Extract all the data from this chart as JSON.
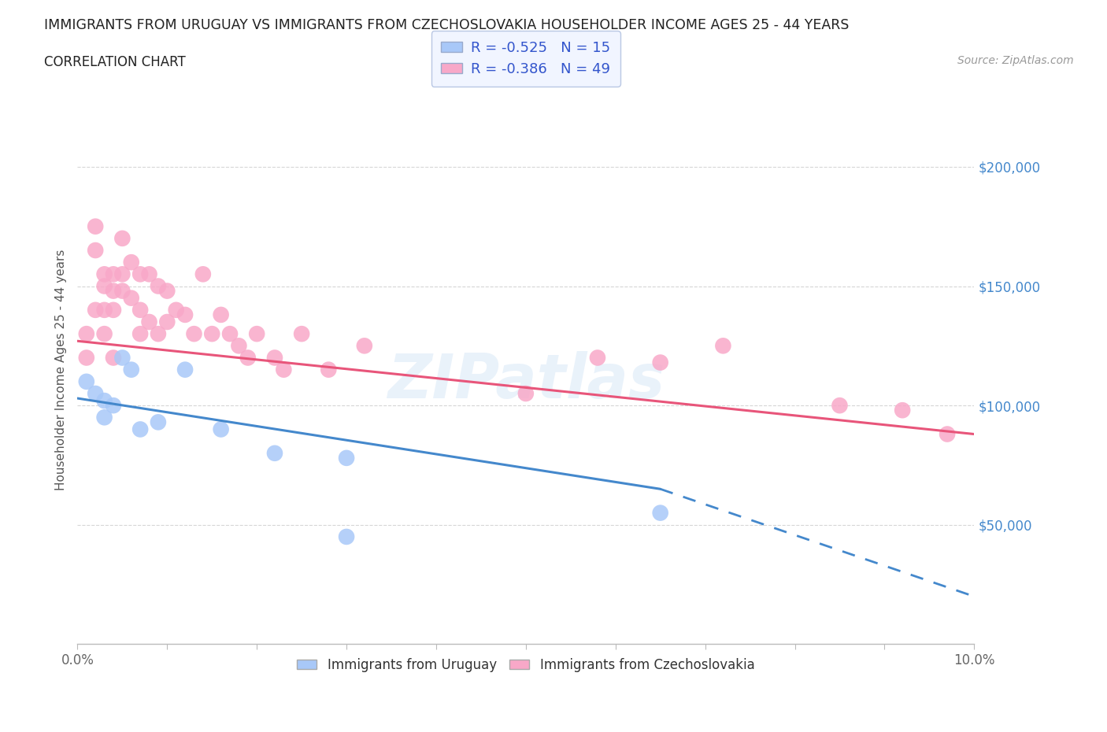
{
  "title": "IMMIGRANTS FROM URUGUAY VS IMMIGRANTS FROM CZECHOSLOVAKIA HOUSEHOLDER INCOME AGES 25 - 44 YEARS",
  "subtitle": "CORRELATION CHART",
  "source": "Source: ZipAtlas.com",
  "ylabel": "Householder Income Ages 25 - 44 years",
  "watermark": "ZIPatlas",
  "xlim": [
    0.0,
    0.1
  ],
  "ylim": [
    0,
    230000
  ],
  "xticks": [
    0.0,
    0.01,
    0.02,
    0.03,
    0.04,
    0.05,
    0.06,
    0.07,
    0.08,
    0.09,
    0.1
  ],
  "ytick_positions": [
    50000,
    100000,
    150000,
    200000
  ],
  "ytick_labels": [
    "$50,000",
    "$100,000",
    "$150,000",
    "$200,000"
  ],
  "uruguay_R": -0.525,
  "uruguay_N": 15,
  "czechoslovakia_R": -0.386,
  "czechoslovakia_N": 49,
  "uruguay_color": "#a8c8f8",
  "czechoslovakia_color": "#f8a8c8",
  "uruguay_line_color": "#4488cc",
  "czechoslovakia_line_color": "#e8557a",
  "uruguay_scatter_x": [
    0.001,
    0.002,
    0.003,
    0.003,
    0.004,
    0.005,
    0.006,
    0.007,
    0.009,
    0.012,
    0.016,
    0.022,
    0.03,
    0.065,
    0.03
  ],
  "uruguay_scatter_y": [
    110000,
    105000,
    102000,
    95000,
    100000,
    120000,
    115000,
    90000,
    93000,
    115000,
    90000,
    80000,
    78000,
    55000,
    45000
  ],
  "czechoslovakia_scatter_x": [
    0.001,
    0.001,
    0.002,
    0.002,
    0.002,
    0.003,
    0.003,
    0.003,
    0.003,
    0.004,
    0.004,
    0.004,
    0.004,
    0.005,
    0.005,
    0.005,
    0.006,
    0.006,
    0.007,
    0.007,
    0.007,
    0.008,
    0.008,
    0.009,
    0.009,
    0.01,
    0.01,
    0.011,
    0.012,
    0.013,
    0.014,
    0.015,
    0.016,
    0.017,
    0.018,
    0.019,
    0.02,
    0.022,
    0.023,
    0.025,
    0.028,
    0.032,
    0.05,
    0.058,
    0.065,
    0.072,
    0.085,
    0.092,
    0.097
  ],
  "czechoslovakia_scatter_y": [
    130000,
    120000,
    165000,
    175000,
    140000,
    155000,
    150000,
    140000,
    130000,
    155000,
    148000,
    140000,
    120000,
    170000,
    155000,
    148000,
    160000,
    145000,
    155000,
    140000,
    130000,
    155000,
    135000,
    150000,
    130000,
    148000,
    135000,
    140000,
    138000,
    130000,
    155000,
    130000,
    138000,
    130000,
    125000,
    120000,
    130000,
    120000,
    115000,
    130000,
    115000,
    125000,
    105000,
    120000,
    118000,
    125000,
    100000,
    98000,
    88000
  ],
  "grid_color": "#cccccc",
  "legend_box_facecolor": "#eef3ff",
  "legend_box_edgecolor": "#aabbdd",
  "legend_label_color": "#3355cc"
}
